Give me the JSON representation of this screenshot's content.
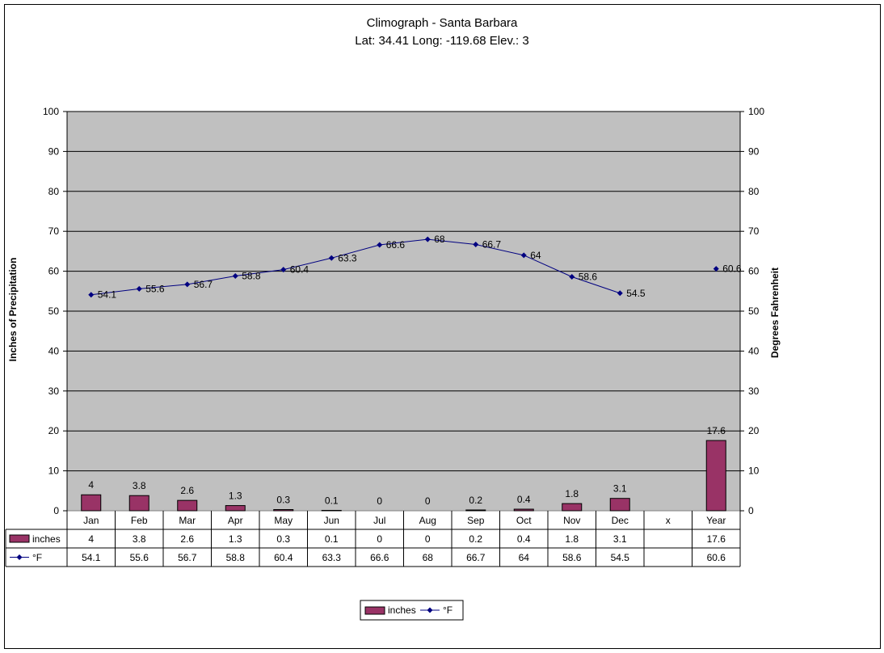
{
  "chart_data": {
    "type": "bar",
    "title": "Climograph - Santa Barbara",
    "subtitle": "Lat: 34.41 Long: -119.68 Elev.: 3",
    "categories": [
      "Jan",
      "Feb",
      "Mar",
      "Apr",
      "May",
      "Jun",
      "Jul",
      "Aug",
      "Sep",
      "Oct",
      "Nov",
      "Dec",
      "x",
      "Year"
    ],
    "ylabel": "Inches of Precipitation",
    "y2label": "Degrees Fahrenheit",
    "ylim": [
      0,
      100
    ],
    "y2lim": [
      0,
      100
    ],
    "yticks": [
      0,
      10,
      20,
      30,
      40,
      50,
      60,
      70,
      80,
      90,
      100
    ],
    "grid": true,
    "legend": "bottom",
    "series": [
      {
        "name": "inches",
        "type": "bar",
        "color": "#993366",
        "values": [
          4,
          3.8,
          2.6,
          1.3,
          0.3,
          0.1,
          0,
          0,
          0.2,
          0.4,
          1.8,
          3.1,
          null,
          17.6
        ]
      },
      {
        "name": "°F",
        "type": "line",
        "color": "#000080",
        "values": [
          54.1,
          55.6,
          56.7,
          58.8,
          60.4,
          63.3,
          66.6,
          68,
          66.7,
          64,
          58.6,
          54.5,
          null,
          60.6
        ]
      }
    ],
    "plot_background": "#c0c0c0"
  }
}
